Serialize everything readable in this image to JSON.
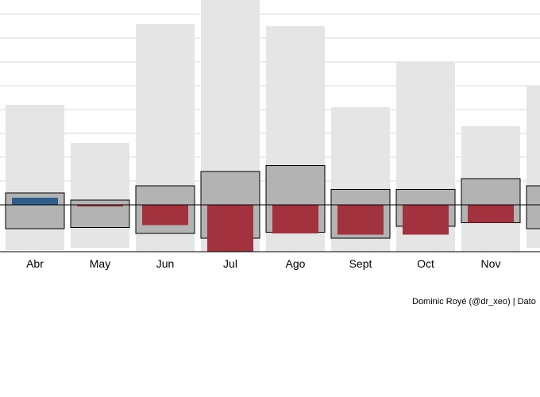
{
  "chart_data": {
    "type": "bar",
    "categories": [
      "Abr",
      "May",
      "Jun",
      "Jul",
      "Ago",
      "Sept",
      "Oct",
      "Nov",
      ""
    ],
    "baseline": 0,
    "ylim": [
      -2.0,
      8.6
    ],
    "grid": true,
    "grid_lines": [
      8.0,
      7.0,
      6.0,
      5.0,
      4.0,
      3.0,
      2.0,
      1.0
    ],
    "series": [
      {
        "role": "range",
        "color": "#e5e5e5",
        "values": [
          [
            -1.9,
            4.2
          ],
          [
            -1.8,
            2.6
          ],
          [
            -2.0,
            7.6
          ],
          [
            -2.0,
            8.6
          ],
          [
            -2.0,
            7.5
          ],
          [
            -2.0,
            4.1
          ],
          [
            -2.0,
            6.0
          ],
          [
            -2.0,
            3.3
          ],
          [
            -1.8,
            5.0
          ]
        ]
      },
      {
        "role": "typical",
        "color": "#b3b3b3",
        "stroke": "#000000",
        "values": [
          [
            -1.0,
            0.5
          ],
          [
            -0.95,
            0.2
          ],
          [
            -1.2,
            0.8
          ],
          [
            -1.4,
            1.4
          ],
          [
            -1.15,
            1.65
          ],
          [
            -1.4,
            0.65
          ],
          [
            -0.9,
            0.65
          ],
          [
            -0.75,
            1.1
          ],
          [
            -1.0,
            0.8
          ]
        ]
      },
      {
        "role": "observed",
        "values": [
          0.3,
          -0.05,
          -0.85,
          -1.95,
          -1.2,
          -1.25,
          -1.25,
          -0.75,
          null
        ],
        "colors": [
          "#2d5f8a",
          "#a3323f",
          "#a3323f",
          "#a3323f",
          "#a3323f",
          "#a3323f",
          "#a3323f",
          "#a3323f",
          "#a3323f"
        ]
      }
    ]
  },
  "caption": "Dominic Royé (@dr_xeo) | Dato"
}
